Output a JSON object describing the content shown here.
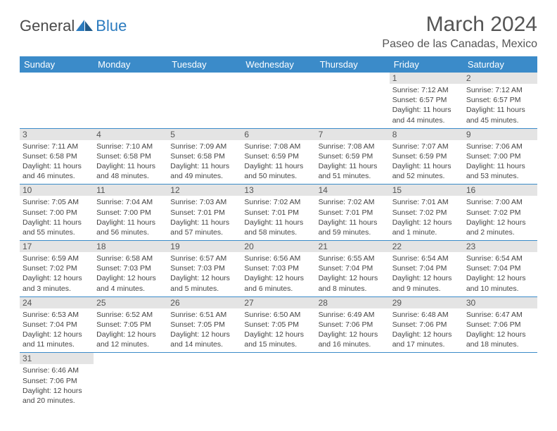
{
  "logo": {
    "text1": "General",
    "text2": "Blue"
  },
  "title": "March 2024",
  "location": "Paseo de las Canadas, Mexico",
  "colors": {
    "header_bg": "#3b8bc9",
    "header_text": "#ffffff",
    "daynum_bg": "#e4e4e4",
    "text": "#555555",
    "border": "#3b8bc9",
    "logo_gray": "#4a4a4a",
    "logo_blue": "#2b7bbf"
  },
  "weekdays": [
    "Sunday",
    "Monday",
    "Tuesday",
    "Wednesday",
    "Thursday",
    "Friday",
    "Saturday"
  ],
  "weeks": [
    [
      null,
      null,
      null,
      null,
      null,
      {
        "n": "1",
        "sr": "Sunrise: 7:12 AM",
        "ss": "Sunset: 6:57 PM",
        "dl": "Daylight: 11 hours and 44 minutes."
      },
      {
        "n": "2",
        "sr": "Sunrise: 7:12 AM",
        "ss": "Sunset: 6:57 PM",
        "dl": "Daylight: 11 hours and 45 minutes."
      }
    ],
    [
      {
        "n": "3",
        "sr": "Sunrise: 7:11 AM",
        "ss": "Sunset: 6:58 PM",
        "dl": "Daylight: 11 hours and 46 minutes."
      },
      {
        "n": "4",
        "sr": "Sunrise: 7:10 AM",
        "ss": "Sunset: 6:58 PM",
        "dl": "Daylight: 11 hours and 48 minutes."
      },
      {
        "n": "5",
        "sr": "Sunrise: 7:09 AM",
        "ss": "Sunset: 6:58 PM",
        "dl": "Daylight: 11 hours and 49 minutes."
      },
      {
        "n": "6",
        "sr": "Sunrise: 7:08 AM",
        "ss": "Sunset: 6:59 PM",
        "dl": "Daylight: 11 hours and 50 minutes."
      },
      {
        "n": "7",
        "sr": "Sunrise: 7:08 AM",
        "ss": "Sunset: 6:59 PM",
        "dl": "Daylight: 11 hours and 51 minutes."
      },
      {
        "n": "8",
        "sr": "Sunrise: 7:07 AM",
        "ss": "Sunset: 6:59 PM",
        "dl": "Daylight: 11 hours and 52 minutes."
      },
      {
        "n": "9",
        "sr": "Sunrise: 7:06 AM",
        "ss": "Sunset: 7:00 PM",
        "dl": "Daylight: 11 hours and 53 minutes."
      }
    ],
    [
      {
        "n": "10",
        "sr": "Sunrise: 7:05 AM",
        "ss": "Sunset: 7:00 PM",
        "dl": "Daylight: 11 hours and 55 minutes."
      },
      {
        "n": "11",
        "sr": "Sunrise: 7:04 AM",
        "ss": "Sunset: 7:00 PM",
        "dl": "Daylight: 11 hours and 56 minutes."
      },
      {
        "n": "12",
        "sr": "Sunrise: 7:03 AM",
        "ss": "Sunset: 7:01 PM",
        "dl": "Daylight: 11 hours and 57 minutes."
      },
      {
        "n": "13",
        "sr": "Sunrise: 7:02 AM",
        "ss": "Sunset: 7:01 PM",
        "dl": "Daylight: 11 hours and 58 minutes."
      },
      {
        "n": "14",
        "sr": "Sunrise: 7:02 AM",
        "ss": "Sunset: 7:01 PM",
        "dl": "Daylight: 11 hours and 59 minutes."
      },
      {
        "n": "15",
        "sr": "Sunrise: 7:01 AM",
        "ss": "Sunset: 7:02 PM",
        "dl": "Daylight: 12 hours and 1 minute."
      },
      {
        "n": "16",
        "sr": "Sunrise: 7:00 AM",
        "ss": "Sunset: 7:02 PM",
        "dl": "Daylight: 12 hours and 2 minutes."
      }
    ],
    [
      {
        "n": "17",
        "sr": "Sunrise: 6:59 AM",
        "ss": "Sunset: 7:02 PM",
        "dl": "Daylight: 12 hours and 3 minutes."
      },
      {
        "n": "18",
        "sr": "Sunrise: 6:58 AM",
        "ss": "Sunset: 7:03 PM",
        "dl": "Daylight: 12 hours and 4 minutes."
      },
      {
        "n": "19",
        "sr": "Sunrise: 6:57 AM",
        "ss": "Sunset: 7:03 PM",
        "dl": "Daylight: 12 hours and 5 minutes."
      },
      {
        "n": "20",
        "sr": "Sunrise: 6:56 AM",
        "ss": "Sunset: 7:03 PM",
        "dl": "Daylight: 12 hours and 6 minutes."
      },
      {
        "n": "21",
        "sr": "Sunrise: 6:55 AM",
        "ss": "Sunset: 7:04 PM",
        "dl": "Daylight: 12 hours and 8 minutes."
      },
      {
        "n": "22",
        "sr": "Sunrise: 6:54 AM",
        "ss": "Sunset: 7:04 PM",
        "dl": "Daylight: 12 hours and 9 minutes."
      },
      {
        "n": "23",
        "sr": "Sunrise: 6:54 AM",
        "ss": "Sunset: 7:04 PM",
        "dl": "Daylight: 12 hours and 10 minutes."
      }
    ],
    [
      {
        "n": "24",
        "sr": "Sunrise: 6:53 AM",
        "ss": "Sunset: 7:04 PM",
        "dl": "Daylight: 12 hours and 11 minutes."
      },
      {
        "n": "25",
        "sr": "Sunrise: 6:52 AM",
        "ss": "Sunset: 7:05 PM",
        "dl": "Daylight: 12 hours and 12 minutes."
      },
      {
        "n": "26",
        "sr": "Sunrise: 6:51 AM",
        "ss": "Sunset: 7:05 PM",
        "dl": "Daylight: 12 hours and 14 minutes."
      },
      {
        "n": "27",
        "sr": "Sunrise: 6:50 AM",
        "ss": "Sunset: 7:05 PM",
        "dl": "Daylight: 12 hours and 15 minutes."
      },
      {
        "n": "28",
        "sr": "Sunrise: 6:49 AM",
        "ss": "Sunset: 7:06 PM",
        "dl": "Daylight: 12 hours and 16 minutes."
      },
      {
        "n": "29",
        "sr": "Sunrise: 6:48 AM",
        "ss": "Sunset: 7:06 PM",
        "dl": "Daylight: 12 hours and 17 minutes."
      },
      {
        "n": "30",
        "sr": "Sunrise: 6:47 AM",
        "ss": "Sunset: 7:06 PM",
        "dl": "Daylight: 12 hours and 18 minutes."
      }
    ],
    [
      {
        "n": "31",
        "sr": "Sunrise: 6:46 AM",
        "ss": "Sunset: 7:06 PM",
        "dl": "Daylight: 12 hours and 20 minutes."
      },
      null,
      null,
      null,
      null,
      null,
      null
    ]
  ]
}
